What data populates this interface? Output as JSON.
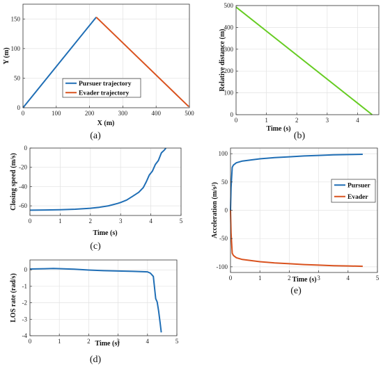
{
  "chart_data": [
    {
      "id": "a",
      "type": "line",
      "panel_label": "(a)",
      "xlabel": "X (m)",
      "ylabel": "Y (m)",
      "xlim": [
        0,
        500
      ],
      "ylim": [
        0,
        175
      ],
      "xticks": [
        0,
        100,
        200,
        300,
        400,
        500
      ],
      "yticks": [
        0,
        50,
        100,
        150
      ],
      "grid": true,
      "legend_position": "bottom-center",
      "series": [
        {
          "name": "Pursuer trajectory",
          "color": "#1f6eb5",
          "x": [
            0,
            220
          ],
          "y": [
            0,
            153
          ]
        },
        {
          "name": "Evader trajectory",
          "color": "#d9521e",
          "x": [
            220,
            498
          ],
          "y": [
            153,
            2
          ]
        }
      ]
    },
    {
      "id": "b",
      "type": "line",
      "panel_label": "(b)",
      "xlabel": "Time (s)",
      "ylabel": "Relative distance (m)",
      "xlim": [
        0,
        4.7
      ],
      "ylim": [
        0,
        500
      ],
      "xticks": [
        0,
        1,
        2,
        3,
        4
      ],
      "yticks": [
        0,
        100,
        200,
        300,
        400,
        500
      ],
      "grid": true,
      "series": [
        {
          "color": "#66cc22",
          "x": [
            0,
            4.48
          ],
          "y": [
            493,
            0
          ]
        }
      ]
    },
    {
      "id": "c",
      "type": "line",
      "panel_label": "(c)",
      "xlabel": "Time (s)",
      "ylabel": "Closing speed (m/s)",
      "xlim": [
        0,
        5
      ],
      "ylim": [
        -70,
        0
      ],
      "xticks": [
        0,
        1,
        2,
        3,
        4,
        5
      ],
      "yticks": [
        0,
        -20,
        -40,
        -60
      ],
      "grid": true,
      "series": [
        {
          "color": "#1f6eb5",
          "x": [
            0,
            0.5,
            1,
            1.5,
            2,
            2.3,
            2.6,
            2.9,
            3.0,
            3.2,
            3.4,
            3.6,
            3.75,
            3.85,
            3.95,
            4.05,
            4.15,
            4.25,
            4.35,
            4.45,
            4.5
          ],
          "y": [
            -64.5,
            -64.3,
            -64,
            -63.5,
            -62.5,
            -61.5,
            -60,
            -57.5,
            -56.5,
            -54,
            -50,
            -46,
            -41,
            -35,
            -28,
            -24,
            -17,
            -13,
            -5,
            -2,
            0
          ]
        }
      ]
    },
    {
      "id": "d",
      "type": "line",
      "panel_label": "(d)",
      "xlabel": "Time (s)",
      "ylabel": "LOS rate (rad/s)",
      "xlim": [
        0,
        5
      ],
      "ylim": [
        -4,
        0.6
      ],
      "xticks": [
        0,
        1,
        2,
        3,
        4,
        5
      ],
      "yticks": [
        0,
        -1,
        -2,
        -3,
        -4
      ],
      "grid": true,
      "series": [
        {
          "color": "#1f6eb5",
          "x": [
            0,
            0.5,
            0.8,
            1.5,
            2,
            2.5,
            3,
            3.5,
            4.0,
            4.1,
            4.2,
            4.28,
            4.33,
            4.38,
            4.43,
            4.47
          ],
          "y": [
            0.05,
            0.07,
            0.08,
            0.04,
            -0.01,
            -0.05,
            -0.07,
            -0.09,
            -0.12,
            -0.2,
            -0.4,
            -1.75,
            -1.95,
            -2.5,
            -3.2,
            -3.8
          ]
        }
      ]
    },
    {
      "id": "e",
      "type": "line",
      "panel_label": "(e)",
      "xlabel": "Time (s)",
      "ylabel": "Acceleration (m/s²)",
      "xlim": [
        0,
        5
      ],
      "ylim": [
        -110,
        110
      ],
      "xticks": [
        0,
        1,
        2,
        3,
        4,
        5
      ],
      "yticks": [
        100,
        50,
        0,
        -50,
        -100
      ],
      "grid": true,
      "legend_position": "right-center",
      "series": [
        {
          "name": "Pursuer",
          "color": "#1f6eb5",
          "x": [
            0,
            0.02,
            0.06,
            0.1,
            0.2,
            0.4,
            0.7,
            1,
            1.5,
            2,
            2.5,
            3,
            3.5,
            4,
            4.5
          ],
          "y": [
            0,
            40,
            76,
            80,
            84,
            87,
            89,
            91,
            93,
            94.5,
            96,
            97,
            98,
            98.5,
            99
          ]
        },
        {
          "name": "Evader",
          "color": "#d9521e",
          "x": [
            0,
            0.02,
            0.06,
            0.1,
            0.2,
            0.4,
            0.7,
            1,
            1.5,
            2,
            2.5,
            3,
            3.5,
            4,
            4.5
          ],
          "y": [
            0,
            -40,
            -76,
            -80,
            -84,
            -87,
            -89,
            -91,
            -93,
            -94.5,
            -96,
            -97,
            -98,
            -98.5,
            -99
          ]
        }
      ]
    }
  ]
}
